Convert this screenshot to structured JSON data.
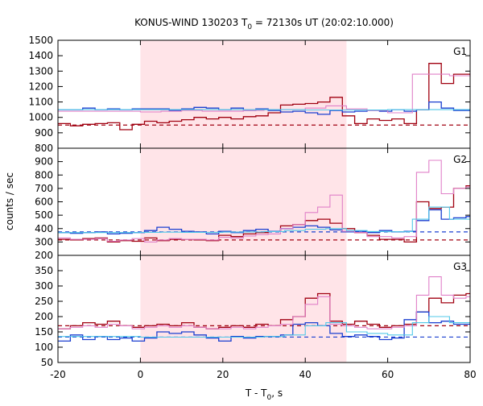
{
  "chart_data": {
    "type": "line",
    "title_main": "KONUS-WIND 130203 T",
    "title_sub": "0",
    "title_rest": " = 72130s UT (20:02:10.000)",
    "xlabel_main": "T - T",
    "xlabel_sub": "0",
    "xlabel_rest": ", s",
    "ylabel": "counts / sec",
    "xlim": [
      -20,
      80
    ],
    "x_ticks": [
      -20,
      0,
      20,
      40,
      60,
      80
    ],
    "shaded_interval": [
      0,
      50
    ],
    "colors": {
      "dark_red": "#a00010",
      "blue": "#1a3fd0",
      "pink": "#e080c8",
      "cyan": "#50c8e8",
      "shade": "#ffe4e8"
    },
    "panels": [
      {
        "label": "G1",
        "ylim": [
          800,
          1500
        ],
        "y_ticks": [
          800,
          900,
          1000,
          1100,
          1200,
          1300,
          1400,
          1500
        ],
        "background_level": 950,
        "background_color": "#a00010",
        "series": [
          {
            "role": "counts",
            "color": "#a00010",
            "x": [
              -20,
              -17,
              -14,
              -11,
              -8,
              -5,
              -2,
              1,
              4,
              7,
              10,
              13,
              16,
              19,
              22,
              25,
              28,
              31,
              34,
              37,
              40,
              43,
              46,
              49,
              52,
              55,
              58,
              61,
              64,
              67,
              70,
              73,
              76,
              79
            ],
            "y": [
              960,
              945,
              955,
              960,
              965,
              920,
              955,
              975,
              965,
              975,
              985,
              1000,
              990,
              1000,
              990,
              1005,
              1010,
              1030,
              1080,
              1085,
              1090,
              1100,
              1130,
              1010,
              960,
              990,
              980,
              990,
              960,
              1050,
              1350,
              1220,
              1280,
              1280
            ]
          },
          {
            "role": "counts",
            "color": "#1a3fd0",
            "x": [
              -20,
              -17,
              -14,
              -11,
              -8,
              -5,
              -2,
              1,
              4,
              7,
              10,
              13,
              16,
              19,
              22,
              25,
              28,
              31,
              34,
              37,
              40,
              43,
              46,
              49,
              52,
              55,
              58,
              61,
              64,
              67,
              70,
              73,
              76,
              79
            ],
            "y": [
              1050,
              1050,
              1060,
              1050,
              1055,
              1050,
              1055,
              1055,
              1055,
              1045,
              1055,
              1065,
              1060,
              1050,
              1060,
              1045,
              1055,
              1045,
              1035,
              1040,
              1030,
              1020,
              1045,
              1035,
              1040,
              1045,
              1040,
              1050,
              1040,
              1050,
              1100,
              1060,
              1045,
              1045
            ]
          },
          {
            "role": "model",
            "color": "#e080c8",
            "x": [
              -20,
              -5,
              0,
              5,
              10,
              15,
              20,
              25,
              30,
              35,
              40,
              45,
              50,
              55,
              60,
              65,
              66,
              70,
              75,
              80
            ],
            "y": [
              1040,
              1040,
              1035,
              1040,
              1045,
              1040,
              1040,
              1045,
              1050,
              1050,
              1060,
              1075,
              1055,
              1045,
              1030,
              1030,
              1280,
              1280,
              1270,
              1265
            ]
          },
          {
            "role": "model",
            "color": "#50c8e8",
            "x": [
              -20,
              0,
              20,
              40,
              60,
              80
            ],
            "y": [
              1050,
              1050,
              1050,
              1048,
              1050,
              1050
            ]
          }
        ]
      },
      {
        "label": "G2",
        "ylim": [
          200,
          1000
        ],
        "y_ticks": [
          200,
          300,
          400,
          500,
          600,
          700,
          800,
          900
        ],
        "background_level": 375,
        "background_color": "#1a3fd0",
        "background_level_2": 315,
        "background_color_2": "#a00010",
        "series": [
          {
            "role": "counts",
            "color": "#a00010",
            "x": [
              -20,
              -17,
              -14,
              -11,
              -8,
              -5,
              -2,
              1,
              4,
              7,
              10,
              13,
              16,
              19,
              22,
              25,
              28,
              31,
              34,
              37,
              40,
              43,
              46,
              49,
              52,
              55,
              58,
              61,
              64,
              67,
              70,
              73,
              76,
              79
            ],
            "y": [
              320,
              315,
              325,
              330,
              300,
              310,
              305,
              330,
              310,
              320,
              320,
              315,
              310,
              350,
              340,
              360,
              370,
              380,
              420,
              430,
              460,
              470,
              440,
              400,
              370,
              350,
              320,
              320,
              300,
              600,
              550,
              560,
              700,
              720
            ]
          },
          {
            "role": "counts",
            "color": "#1a3fd0",
            "x": [
              -20,
              -17,
              -14,
              -11,
              -8,
              -5,
              -2,
              1,
              4,
              7,
              10,
              13,
              16,
              19,
              22,
              25,
              28,
              31,
              34,
              37,
              40,
              43,
              46,
              49,
              52,
              55,
              58,
              61,
              64,
              67,
              70,
              73,
              76,
              79
            ],
            "y": [
              370,
              365,
              370,
              375,
              360,
              365,
              370,
              385,
              410,
              395,
              380,
              375,
              360,
              380,
              370,
              385,
              395,
              380,
              400,
              410,
              420,
              410,
              390,
              375,
              380,
              370,
              385,
              375,
              380,
              460,
              540,
              470,
              480,
              490
            ]
          },
          {
            "role": "model",
            "color": "#e080c8",
            "x": [
              -20,
              -17,
              -14,
              -11,
              -8,
              -5,
              -2,
              1,
              4,
              7,
              10,
              13,
              16,
              19,
              22,
              25,
              28,
              31,
              34,
              37,
              40,
              43,
              46,
              49,
              52,
              55,
              58,
              61,
              64,
              67,
              70,
              73,
              76,
              79
            ],
            "y": [
              330,
              320,
              320,
              325,
              305,
              315,
              325,
              300,
              315,
              325,
              320,
              320,
              315,
              335,
              330,
              345,
              355,
              360,
              400,
              430,
              520,
              560,
              650,
              380,
              370,
              340,
              340,
              330,
              340,
              820,
              910,
              660,
              700,
              710
            ]
          },
          {
            "role": "model",
            "color": "#50c8e8",
            "x": [
              -20,
              -5,
              0,
              5,
              10,
              15,
              20,
              25,
              30,
              35,
              40,
              45,
              50,
              55,
              60,
              65,
              66,
              70,
              75,
              80
            ],
            "y": [
              370,
              370,
              372,
              373,
              372,
              372,
              374,
              375,
              378,
              385,
              395,
              400,
              385,
              378,
              376,
              378,
              470,
              560,
              470,
              480
            ]
          }
        ]
      },
      {
        "label": "G3",
        "ylim": [
          50,
          400
        ],
        "y_ticks": [
          50,
          100,
          150,
          200,
          250,
          300,
          350
        ],
        "background_level": 170,
        "background_color": "#a00010",
        "background_level_2": 133,
        "background_color_2": "#1a3fd0",
        "series": [
          {
            "role": "counts",
            "color": "#a00010",
            "x": [
              -20,
              -17,
              -14,
              -11,
              -8,
              -5,
              -2,
              1,
              4,
              7,
              10,
              13,
              16,
              19,
              22,
              25,
              28,
              31,
              34,
              37,
              40,
              43,
              46,
              49,
              52,
              55,
              58,
              61,
              64,
              67,
              70,
              73,
              76,
              79
            ],
            "y": [
              160,
              170,
              180,
              175,
              185,
              170,
              165,
              170,
              175,
              170,
              180,
              165,
              160,
              165,
              170,
              165,
              175,
              170,
              190,
              200,
              260,
              275,
              185,
              175,
              185,
              175,
              165,
              170,
              175,
              215,
              260,
              245,
              270,
              275
            ]
          },
          {
            "role": "counts",
            "color": "#1a3fd0",
            "x": [
              -20,
              -17,
              -14,
              -11,
              -8,
              -5,
              -2,
              1,
              4,
              7,
              10,
              13,
              16,
              19,
              22,
              25,
              28,
              31,
              34,
              37,
              40,
              43,
              46,
              49,
              52,
              55,
              58,
              61,
              64,
              67,
              70,
              73,
              76,
              79
            ],
            "y": [
              120,
              140,
              125,
              135,
              125,
              130,
              120,
              130,
              150,
              145,
              150,
              140,
              130,
              120,
              135,
              130,
              135,
              135,
              140,
              175,
              180,
              170,
              145,
              135,
              140,
              135,
              125,
              130,
              190,
              215,
              180,
              185,
              175,
              175
            ]
          },
          {
            "role": "model",
            "color": "#e080c8",
            "x": [
              -20,
              -17,
              -14,
              -11,
              -8,
              -5,
              -2,
              1,
              4,
              7,
              10,
              13,
              16,
              19,
              22,
              25,
              28,
              31,
              34,
              37,
              40,
              43,
              46,
              49,
              52,
              55,
              58,
              61,
              64,
              67,
              70,
              73,
              76,
              79
            ],
            "y": [
              160,
              165,
              170,
              165,
              175,
              170,
              160,
              165,
              170,
              165,
              170,
              165,
              160,
              160,
              165,
              160,
              165,
              170,
              175,
              200,
              240,
              265,
              175,
              170,
              165,
              160,
              160,
              165,
              170,
              270,
              330,
              270,
              260,
              265
            ]
          },
          {
            "role": "model",
            "color": "#50c8e8",
            "x": [
              -20,
              -5,
              0,
              5,
              10,
              15,
              20,
              25,
              30,
              35,
              40,
              45,
              50,
              55,
              60,
              65,
              66,
              70,
              75,
              80
            ],
            "y": [
              135,
              135,
              133,
              133,
              133,
              133,
              133,
              133,
              135,
              140,
              170,
              180,
              150,
              145,
              140,
              140,
              180,
              200,
              180,
              175
            ]
          }
        ]
      }
    ]
  }
}
